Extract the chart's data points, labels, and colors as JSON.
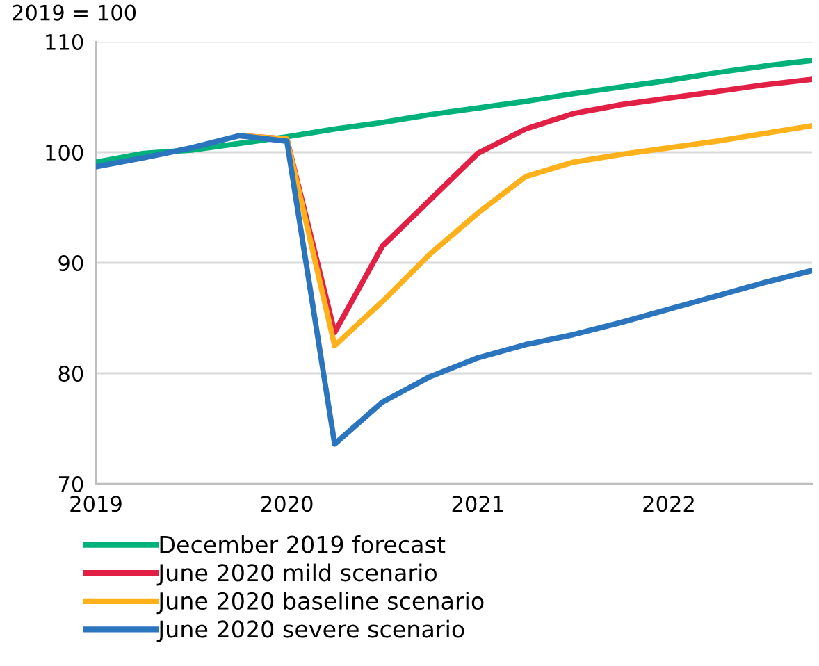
{
  "chart_data": {
    "type": "line",
    "ylabel": "2019 = 100",
    "x": [
      2019,
      2019.25,
      2019.5,
      2019.75,
      2020,
      2020.25,
      2020.5,
      2020.75,
      2021,
      2021.25,
      2021.5,
      2021.75,
      2022,
      2022.25,
      2022.5,
      2022.75
    ],
    "series": [
      {
        "name": "December 2019 forecast",
        "color": "#00b17a",
        "values": [
          99.1,
          99.9,
          100.2,
          100.8,
          101.4,
          102.1,
          102.7,
          103.4,
          104.0,
          104.6,
          105.3,
          105.9,
          106.5,
          107.2,
          107.8,
          108.3
        ]
      },
      {
        "name": "June 2020 mild scenario",
        "color": "#e21f45",
        "values": [
          null,
          null,
          null,
          101.5,
          101.2,
          83.7,
          91.5,
          95.7,
          99.9,
          102.1,
          103.5,
          104.3,
          104.9,
          105.5,
          106.1,
          106.6
        ]
      },
      {
        "name": "June 2020 baseline scenario",
        "color": "#ffb11b",
        "values": [
          null,
          null,
          null,
          101.5,
          101.2,
          82.5,
          86.5,
          90.8,
          94.5,
          97.8,
          99.1,
          99.8,
          100.4,
          101.0,
          101.7,
          102.4
        ]
      },
      {
        "name": "June 2020 severe scenario",
        "color": "#2a75be",
        "values": [
          98.7,
          99.5,
          100.4,
          101.5,
          101.0,
          73.6,
          77.4,
          79.7,
          81.4,
          82.6,
          83.5,
          84.6,
          85.8,
          87.0,
          88.2,
          89.3
        ]
      }
    ],
    "xlim": [
      2019,
      2022.75
    ],
    "xticks": [
      2019,
      2020,
      2021,
      2022
    ],
    "ylim": [
      70,
      110
    ],
    "yticks": [
      70,
      80,
      90,
      100,
      110
    ],
    "grid": "y",
    "legend": "bottom",
    "marker": "none",
    "line_style": "solid"
  }
}
